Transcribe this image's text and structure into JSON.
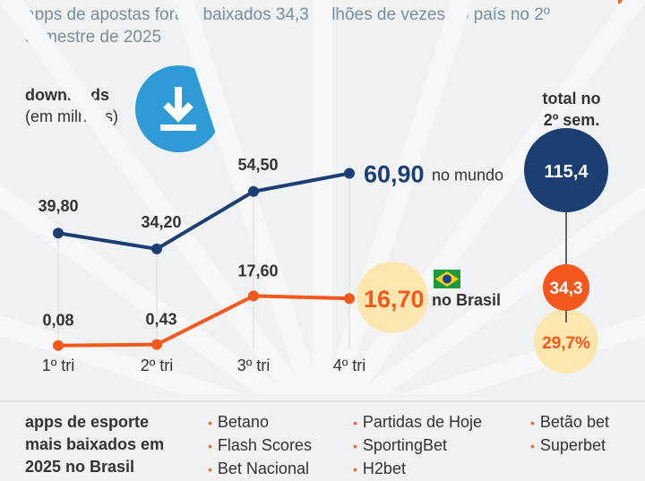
{
  "subtitle": "apps de apostas foram baixados 34,3 milhões de vezes no país no 2º semestre de 2025",
  "axis_title": {
    "line1": "downloads",
    "line2": "(em milhões)"
  },
  "icons": {
    "download": "download-icon",
    "flag": "brazil-flag-icon"
  },
  "colors": {
    "world": "#1c3f73",
    "brasil": "#f4581c",
    "highlight": "#fde7b0",
    "icon_bg": "#2e9ad6"
  },
  "chart_data": {
    "type": "line",
    "categories": [
      "1º tri",
      "2º tri",
      "3º tri",
      "4º tri"
    ],
    "series": [
      {
        "name": "no mundo",
        "values": [
          39.8,
          34.2,
          54.5,
          60.9
        ],
        "labels": [
          "39,80",
          "34,20",
          "54,50",
          "60,90"
        ]
      },
      {
        "name": "no Brasil",
        "values": [
          0.08,
          0.43,
          17.6,
          16.7
        ],
        "labels": [
          "0,08",
          "0,43",
          "17,60",
          "16,70"
        ]
      }
    ]
  },
  "totals": {
    "title1": "total no",
    "title2": "2º sem.",
    "world": "115,4",
    "brasil": "34,3",
    "share": "29,7%"
  },
  "list": {
    "title": [
      "apps de esporte",
      "mais baixados em",
      "2025 no Brasil"
    ],
    "columns": [
      [
        "Betano",
        "Flash Scores",
        "Bet Nacional"
      ],
      [
        "Partidas de Hoje",
        "SportingBet",
        "H2bet"
      ],
      [
        "Betão bet",
        "Superbet"
      ]
    ]
  }
}
